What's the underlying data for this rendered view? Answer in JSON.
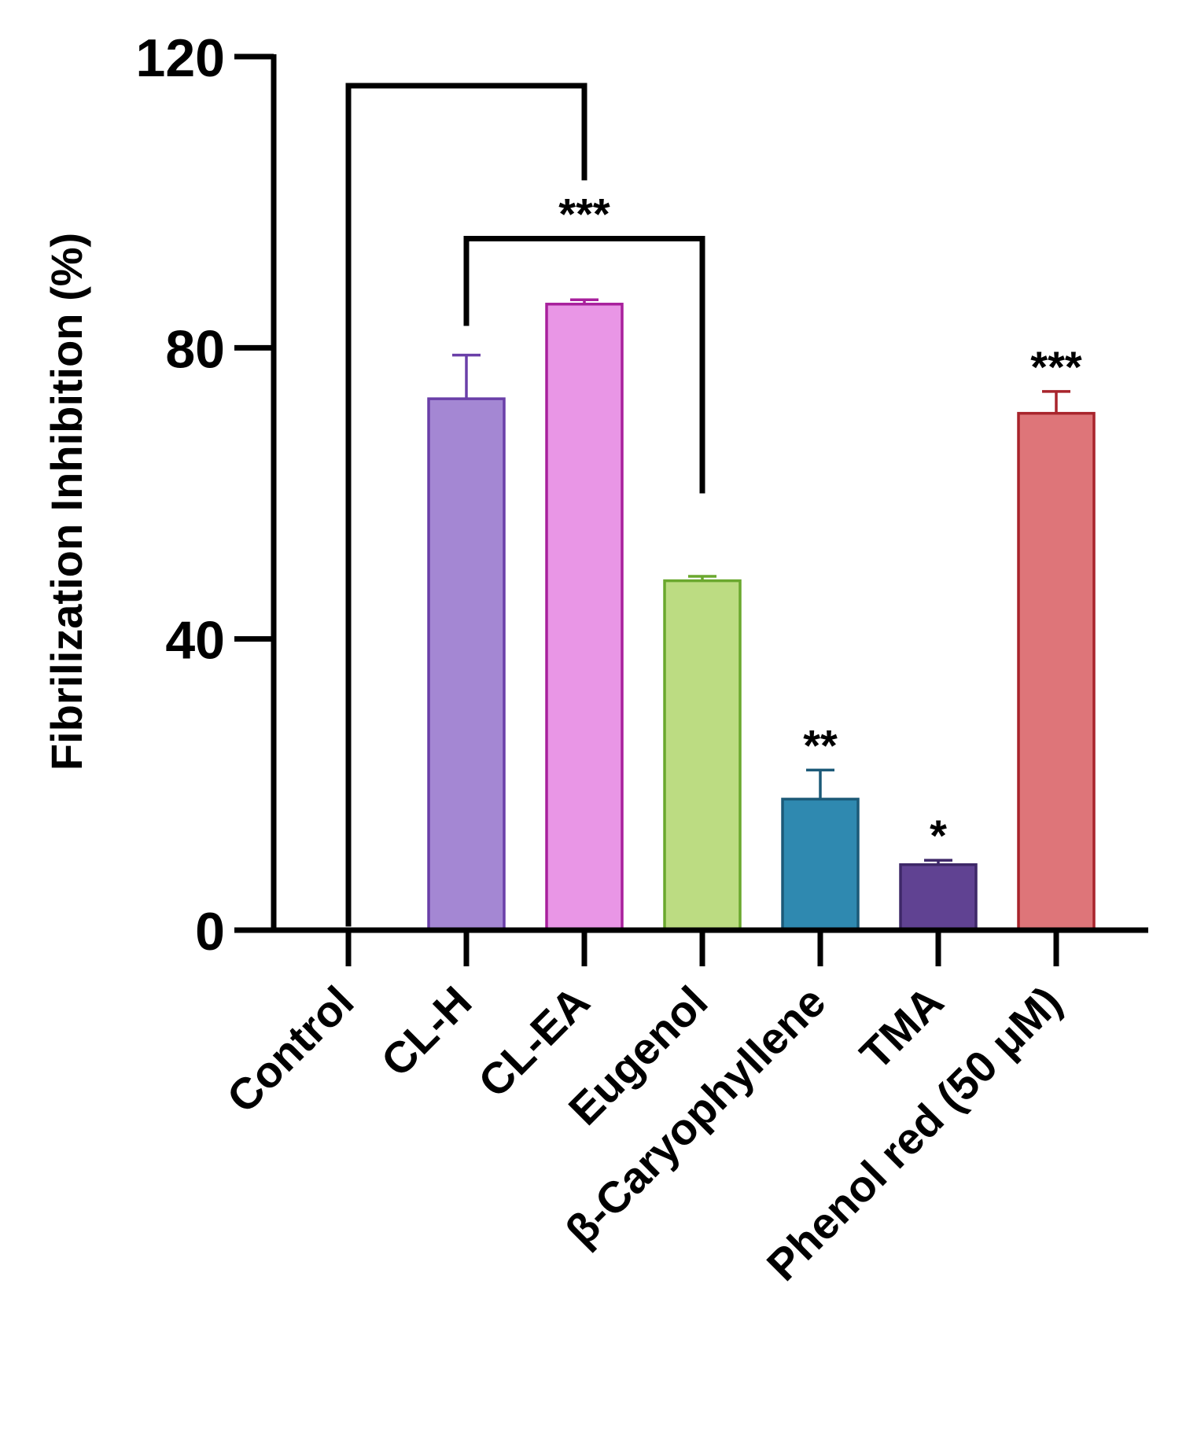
{
  "chart_data": {
    "type": "bar",
    "title": "",
    "xlabel": "",
    "ylabel": "Fibrilization Inhibition (%)",
    "ylim": [
      0,
      120
    ],
    "yticks": [
      0,
      40,
      80,
      120
    ],
    "categories": [
      "Control",
      "CL-H",
      "CL-EA",
      "Eugenol",
      "β-Caryophyllene",
      "TMA",
      "Phenol red (50 μM)"
    ],
    "values": [
      0,
      73,
      86,
      48,
      18,
      9,
      71
    ],
    "errors": [
      0,
      6,
      0.6,
      0.6,
      4,
      0.6,
      3
    ],
    "colors": [
      {
        "fill": "#ffffff",
        "stroke": "#000000"
      },
      {
        "fill": "#a487d3",
        "stroke": "#6a3fa8"
      },
      {
        "fill": "#e996e6",
        "stroke": "#a8209c"
      },
      {
        "fill": "#bcdc82",
        "stroke": "#6aa82e"
      },
      {
        "fill": "#2f89b0",
        "stroke": "#1c5a78"
      },
      {
        "fill": "#604292",
        "stroke": "#3e2868"
      },
      {
        "fill": "#de7579",
        "stroke": "#a8242c"
      }
    ],
    "significance": [
      "",
      "",
      "",
      "",
      "**",
      "*",
      "***"
    ],
    "brackets": [
      {
        "from": "Control",
        "to": "CL-EA",
        "level": 116,
        "from_end": 0.5,
        "to_end": 103,
        "label": ""
      },
      {
        "from": "CL-H",
        "to": "Eugenol",
        "level": 95,
        "from_end": 83,
        "to_end": 60,
        "label": "***"
      }
    ]
  }
}
